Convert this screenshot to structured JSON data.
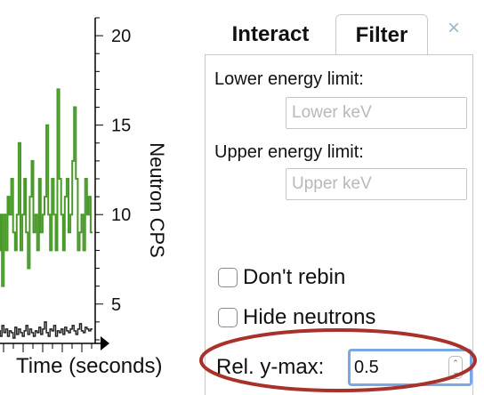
{
  "chart": {
    "xlabel": "Time (seconds)",
    "ylabel": "Neutron CPS",
    "y_ticks": [
      "5",
      "10",
      "15",
      "20"
    ],
    "colors": {
      "neutron_series": "#4a9a2a",
      "gamma_series": "#222222",
      "axis": "#000000"
    }
  },
  "chart_data": {
    "type": "line",
    "title": "",
    "xlabel": "Time (seconds)",
    "ylabel": "Neutron CPS",
    "ylim": [
      2.8,
      21
    ],
    "y_ticks": [
      5,
      10,
      15,
      20
    ],
    "series": [
      {
        "values": [
          10,
          8,
          10,
          6,
          10,
          8,
          11,
          10,
          12,
          9,
          8,
          10,
          14,
          8,
          10,
          12,
          9,
          7,
          11,
          13,
          9,
          10,
          8,
          12,
          9,
          10,
          11,
          15,
          10,
          8,
          12,
          10,
          8,
          17,
          12,
          10,
          8,
          11,
          12,
          9,
          10,
          13,
          16,
          12,
          8,
          9,
          10,
          8,
          12,
          10,
          11,
          9
        ]
      },
      {
        "values": [
          3.6,
          3.5,
          3.2,
          3.8,
          3.4,
          3.6,
          3.2,
          3.5,
          3.4,
          3.1,
          3.7,
          3.3,
          3.6,
          3.4,
          3.2,
          3.5,
          3.8,
          3.3,
          3.6,
          3.4,
          3.2,
          3.5,
          3.4,
          3.7,
          3.3,
          3.6,
          4.0,
          3.4,
          3.2,
          3.6,
          3.5,
          3.8,
          3.2,
          3.5,
          3.4,
          3.6,
          3.3,
          3.7,
          3.5,
          3.4,
          3.6,
          3.8,
          3.5,
          3.3,
          3.6,
          3.9,
          3.5,
          3.4,
          3.7,
          3.6,
          3.5,
          3.6
        ]
      }
    ]
  },
  "tabs": {
    "interact": "Interact",
    "filter": "Filter",
    "close": "×"
  },
  "filter": {
    "lower_label": "Lower energy limit:",
    "lower_placeholder": "Lower keV",
    "upper_label": "Upper energy limit:",
    "upper_placeholder": "Upper keV",
    "dont_rebin": "Don't rebin",
    "hide_neutrons": "Hide neutrons",
    "ymax_label": "Rel. y-max:",
    "ymax_value": "0.5",
    "spinner_up": "⌃",
    "spinner_down": "⌄"
  },
  "annotation": {
    "highlight_color": "#a8322a"
  }
}
